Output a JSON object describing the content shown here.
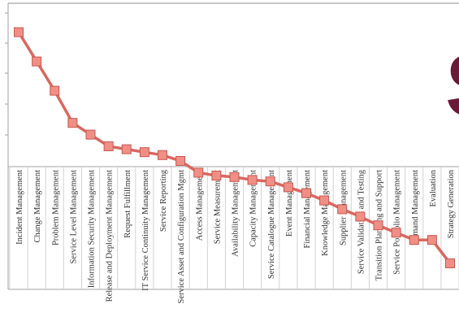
{
  "chart_data": {
    "type": "line",
    "title": "",
    "xlabel": "",
    "ylabel": "",
    "legend": "none",
    "grid": false,
    "categories": [
      "Incident Management",
      "Change Management",
      "Problem Management",
      "Service Level Management",
      "Information Security Management",
      "Release and Deployment Management",
      "Request Fulfillment",
      "IT Service Continuity Management",
      "Service Reporting",
      "Service Asset and Configuration Mgmt",
      "Access Management",
      "Service Measurement",
      "Availability Management",
      "Capacity Management",
      "Service Catalogue Management",
      "Event Management",
      "Financial Management",
      "Knowledge Management",
      "Supplier Management",
      "Service Validation and Testing",
      "Transition Planning and Support",
      "Service Portfolio Management",
      "Demand Management",
      "Evaluation",
      "Strategy Generation"
    ],
    "series": [
      {
        "name": "",
        "color": "#d7685f",
        "values": [
          8.9,
          7.9,
          6.9,
          5.8,
          5.4,
          5.0,
          4.9,
          4.8,
          4.7,
          4.5,
          4.1,
          4.0,
          3.95,
          3.85,
          3.8,
          3.6,
          3.4,
          3.15,
          2.85,
          2.6,
          2.3,
          2.05,
          1.8,
          1.8,
          1.0
        ]
      }
    ],
    "ylim": [
      0,
      10
    ]
  },
  "overlay": {
    "partial_heading_letter": "S"
  }
}
